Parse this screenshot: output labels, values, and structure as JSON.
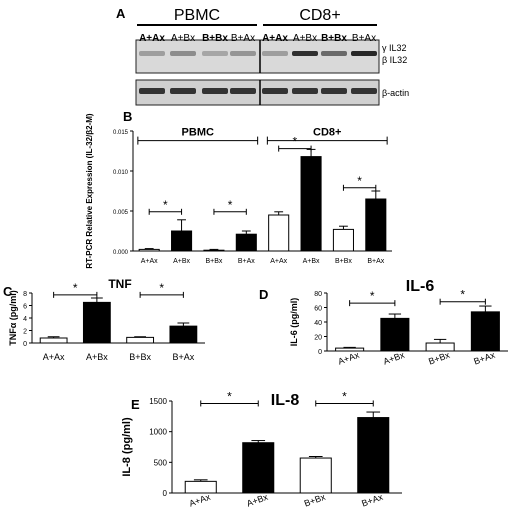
{
  "panels": {
    "a": "A",
    "b": "B",
    "c": "C",
    "d": "D",
    "e": "E"
  },
  "blot": {
    "groups": [
      "PBMC",
      "CD8+"
    ],
    "lanes": [
      "A+Ax",
      "A+Bx",
      "B+Bx",
      "B+Ax",
      "A+Ax",
      "A+Bx",
      "B+Bx",
      "B+Ax"
    ],
    "lane_bold": [
      true,
      false,
      true,
      false,
      true,
      false,
      true,
      false
    ],
    "band_labels": [
      "γ IL32",
      "β IL32",
      "β-actin"
    ]
  },
  "chart_data": [
    {
      "type": "bar",
      "panel": "B",
      "categories": [
        "A+Ax",
        "A+Bx",
        "B+Bx",
        "B+Ax",
        "A+Ax",
        "A+Bx",
        "B+Bx",
        "B+Ax"
      ],
      "values": [
        0.0002,
        0.0025,
        0.0001,
        0.0021,
        0.0045,
        0.0118,
        0.0027,
        0.0065
      ],
      "errors": [
        0.0001,
        0.0014,
        0.0001,
        0.0004,
        0.0004,
        0.0009,
        0.0004,
        0.001
      ],
      "fills": [
        "#ffffff",
        "#000000",
        "#ffffff",
        "#000000",
        "#ffffff",
        "#000000",
        "#ffffff",
        "#000000"
      ],
      "ylabel": "RT-PCR Relative Expression (IL-32/β2-M)",
      "ylim": [
        0,
        0.015
      ],
      "yticks": [
        "0.000",
        "0.005",
        "0.010",
        "0.015"
      ],
      "groups": [
        "PBMC",
        "CD8+"
      ],
      "significance": [
        "*",
        "*",
        "*",
        "*"
      ]
    },
    {
      "type": "bar",
      "panel": "C",
      "title": "TNF",
      "categories": [
        "A+Ax",
        "A+Bx",
        "B+Bx",
        "B+Ax"
      ],
      "values": [
        0.8,
        6.5,
        0.9,
        2.7
      ],
      "errors": [
        0.2,
        0.7,
        0.1,
        0.5
      ],
      "fills": [
        "#ffffff",
        "#000000",
        "#ffffff",
        "#000000"
      ],
      "ylabel": "TNFα (pg/ml)",
      "ylim": [
        0,
        8
      ],
      "yticks": [
        "0",
        "2",
        "4",
        "6",
        "8"
      ],
      "significance": [
        "*",
        "*"
      ]
    },
    {
      "type": "bar",
      "panel": "D",
      "title": "IL-6",
      "categories": [
        "A+Ax",
        "A+Bx",
        "B+Bx",
        "B+Ax"
      ],
      "values": [
        4,
        45,
        11,
        54
      ],
      "errors": [
        1,
        6,
        5,
        8
      ],
      "fills": [
        "#ffffff",
        "#000000",
        "#ffffff",
        "#000000"
      ],
      "ylabel": "IL-6 (pg/ml)",
      "ylim": [
        0,
        80
      ],
      "yticks": [
        "0",
        "20",
        "40",
        "60",
        "80"
      ],
      "significance": [
        "*",
        "*"
      ]
    },
    {
      "type": "bar",
      "panel": "E",
      "title": "IL-8",
      "categories": [
        "A+Ax",
        "A+Bx",
        "B+Bx",
        "B+Ax"
      ],
      "values": [
        190,
        820,
        570,
        1230
      ],
      "errors": [
        25,
        35,
        25,
        90
      ],
      "fills": [
        "#ffffff",
        "#000000",
        "#ffffff",
        "#000000"
      ],
      "ylabel": "IL-8 (pg/ml)",
      "ylim": [
        0,
        1500
      ],
      "yticks": [
        "0",
        "500",
        "1000",
        "1500"
      ],
      "significance": [
        "*",
        "*"
      ]
    }
  ]
}
